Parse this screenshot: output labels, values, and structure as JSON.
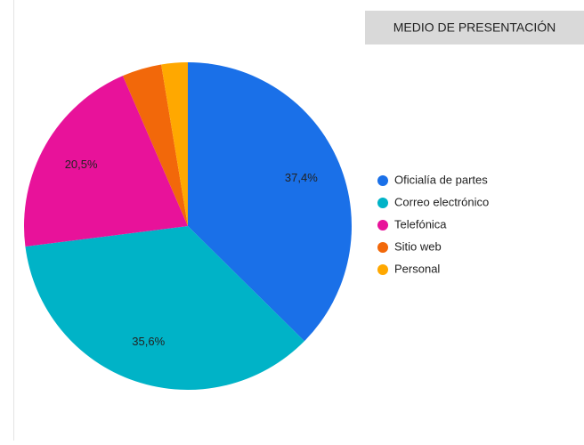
{
  "chart_data": {
    "type": "pie",
    "title": "MEDIO DE PRESENTACIÓN",
    "categories": [
      "Oficialía de partes",
      "Correo electrónico",
      "Telefónica",
      "Sitio web",
      "Personal"
    ],
    "values": [
      37.4,
      35.6,
      20.5,
      3.9,
      2.6
    ],
    "value_labels": [
      "37,4%",
      "35,6%",
      "20,5%",
      null,
      null
    ],
    "colors": [
      "#1a70e8",
      "#00b3c7",
      "#e8129a",
      "#f2680a",
      "#ffa800"
    ],
    "legend": "right"
  }
}
